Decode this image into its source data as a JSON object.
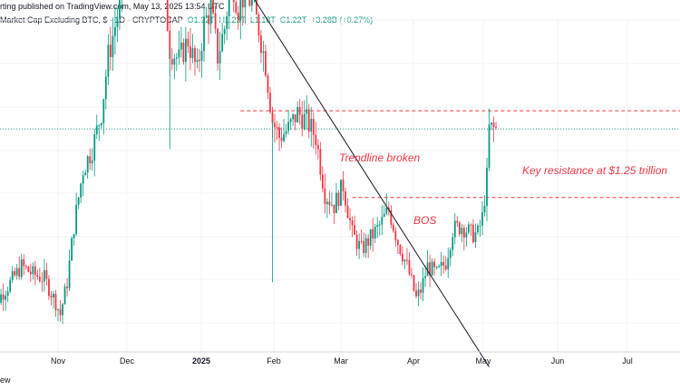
{
  "header": {
    "publisher_line": "rting published on TradingView.com, May 13, 2025 13:54 UTC",
    "symbol": "Market Cap Excluding BTC, $ · 1D · CRYPTOCAP",
    "o_label": "O",
    "o_value": "1.22T",
    "h_label": "H",
    "h_value": "1.23T",
    "l_label": "L",
    "l_value": "1.18T",
    "c_label": "C",
    "c_value": "1.22T",
    "change": "+3.28B (+0.27%)"
  },
  "footer_text": "ew",
  "colors": {
    "up": "#089981",
    "down": "#f23645",
    "trend": "#131722",
    "annotation": "#f23645",
    "grid": "#f0f3fa"
  },
  "chart_data": {
    "type": "candlestick",
    "x_axis_ticks": [
      "Nov",
      "Dec",
      "2025",
      "Feb",
      "Mar",
      "Apr",
      "May",
      "Jun",
      "Jul"
    ],
    "y_axis_ticks": [],
    "annotations": [
      "Trendline broken",
      "Key resistance at $1.25 trillion",
      "BOS"
    ],
    "trendline": {
      "start": [
        "2025-01-16",
        1.63
      ],
      "end": [
        "2025-05-09",
        0.63
      ]
    },
    "levels": [
      {
        "label": "Trendline broken",
        "value": 1.265,
        "from": "2025-01-20",
        "to": "2025-05-31"
      },
      {
        "label": "BOS",
        "value": 1.05,
        "from": "2025-03-10",
        "to": "2025-05-31"
      }
    ],
    "current_price_line": 1.22,
    "keypoints": [
      [
        "2024-10-01",
        0.78
      ],
      [
        "2024-10-06",
        0.8
      ],
      [
        "2024-10-10",
        0.83
      ],
      [
        "2024-10-16",
        0.88
      ],
      [
        "2024-10-21",
        0.86
      ],
      [
        "2024-10-26",
        0.85
      ],
      [
        "2024-10-31",
        0.79
      ],
      [
        "2024-11-02",
        0.76
      ],
      [
        "2024-11-05",
        0.84
      ],
      [
        "2024-11-08",
        0.98
      ],
      [
        "2024-11-12",
        1.12
      ],
      [
        "2024-11-16",
        1.17
      ],
      [
        "2024-11-20",
        1.26
      ],
      [
        "2024-11-23",
        1.4
      ],
      [
        "2024-11-27",
        1.5
      ],
      [
        "2024-11-30",
        1.6
      ],
      [
        "2024-12-04",
        1.7
      ],
      [
        "2024-12-07",
        1.75
      ],
      [
        "2024-12-10",
        1.58
      ],
      [
        "2024-12-14",
        1.68
      ],
      [
        "2024-12-17",
        1.61
      ],
      [
        "2024-12-20",
        1.42
      ],
      [
        "2024-12-24",
        1.39
      ],
      [
        "2024-12-28",
        1.44
      ],
      [
        "2025-01-01",
        1.36
      ],
      [
        "2025-01-04",
        1.48
      ],
      [
        "2025-01-07",
        1.52
      ],
      [
        "2025-01-10",
        1.4
      ],
      [
        "2025-01-13",
        1.47
      ],
      [
        "2025-01-16",
        1.6
      ],
      [
        "2025-01-19",
        1.52
      ],
      [
        "2025-01-22",
        1.56
      ],
      [
        "2025-01-25",
        1.53
      ],
      [
        "2025-01-28",
        1.47
      ],
      [
        "2025-01-31",
        1.38
      ],
      [
        "2025-02-03",
        1.24
      ],
      [
        "2025-02-06",
        1.2
      ],
      [
        "2025-02-10",
        1.22
      ],
      [
        "2025-02-14",
        1.26
      ],
      [
        "2025-02-18",
        1.24
      ],
      [
        "2025-02-22",
        1.2
      ],
      [
        "2025-02-26",
        1.06
      ],
      [
        "2025-03-02",
        1.03
      ],
      [
        "2025-03-06",
        1.08
      ],
      [
        "2025-03-10",
        0.96
      ],
      [
        "2025-03-14",
        0.92
      ],
      [
        "2025-03-18",
        0.95
      ],
      [
        "2025-03-22",
        0.98
      ],
      [
        "2025-03-26",
        1.02
      ],
      [
        "2025-03-30",
        0.94
      ],
      [
        "2025-04-03",
        0.88
      ],
      [
        "2025-04-07",
        0.8
      ],
      [
        "2025-04-09",
        0.82
      ],
      [
        "2025-04-12",
        0.88
      ],
      [
        "2025-04-16",
        0.86
      ],
      [
        "2025-04-20",
        0.89
      ],
      [
        "2025-04-23",
        0.97
      ],
      [
        "2025-04-27",
        0.98
      ],
      [
        "2025-05-01",
        0.96
      ],
      [
        "2025-05-04",
        0.96
      ],
      [
        "2025-05-06",
        1.0
      ],
      [
        "2025-05-08",
        1.1
      ],
      [
        "2025-05-09",
        1.22
      ],
      [
        "2025-05-12",
        1.22
      ]
    ]
  }
}
